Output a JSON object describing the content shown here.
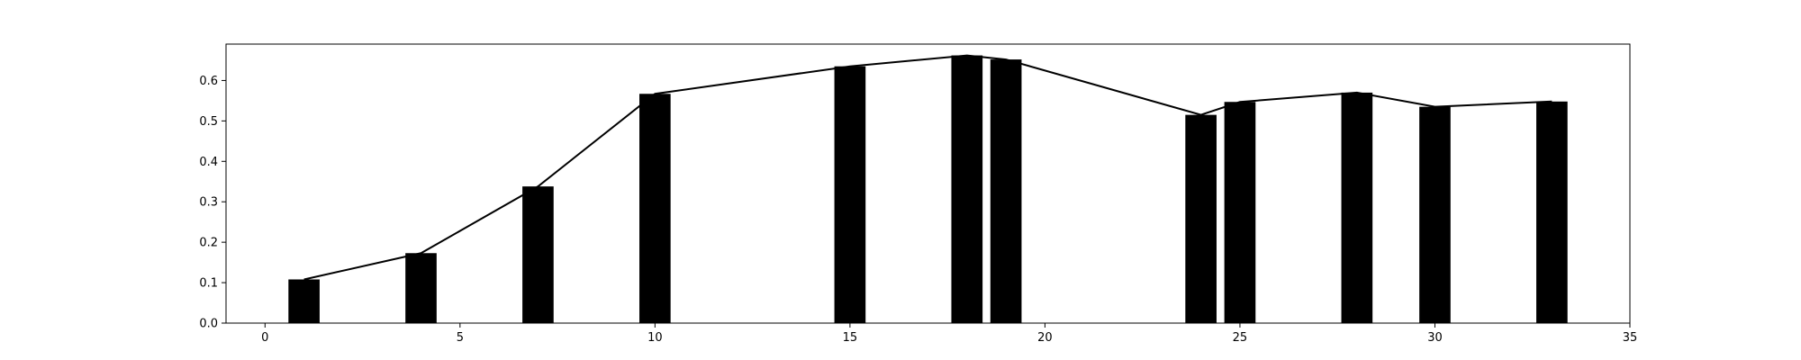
{
  "chart_data": {
    "type": "bar",
    "title": "",
    "xlabel": "",
    "ylabel": "",
    "xlim": [
      -1,
      35
    ],
    "ylim": [
      0,
      0.69
    ],
    "grid": false,
    "legend": "none",
    "bar_color": "#000000",
    "line_color": "#000000",
    "bar_width": 0.8,
    "x": [
      1,
      4,
      7,
      10,
      15,
      18,
      19,
      24,
      25,
      28,
      30,
      33
    ],
    "values": [
      0.108,
      0.173,
      0.338,
      0.567,
      0.635,
      0.662,
      0.652,
      0.515,
      0.547,
      0.57,
      0.535,
      0.548
    ],
    "overlay_line": {
      "x": [
        1,
        4,
        7,
        10,
        15,
        18,
        19,
        24,
        25,
        28,
        30,
        33
      ],
      "values": [
        0.108,
        0.173,
        0.338,
        0.567,
        0.635,
        0.662,
        0.652,
        0.515,
        0.547,
        0.57,
        0.535,
        0.548
      ]
    },
    "x_ticks": [
      0,
      5,
      10,
      15,
      20,
      25,
      30,
      35
    ],
    "x_tick_labels": [
      "0",
      "5",
      "10",
      "15",
      "20",
      "25",
      "30",
      "35"
    ],
    "y_ticks": [
      0.0,
      0.1,
      0.2,
      0.3,
      0.4,
      0.5,
      0.6
    ],
    "y_tick_labels": [
      "0.0",
      "0.1",
      "0.2",
      "0.3",
      "0.4",
      "0.5",
      "0.6"
    ]
  }
}
